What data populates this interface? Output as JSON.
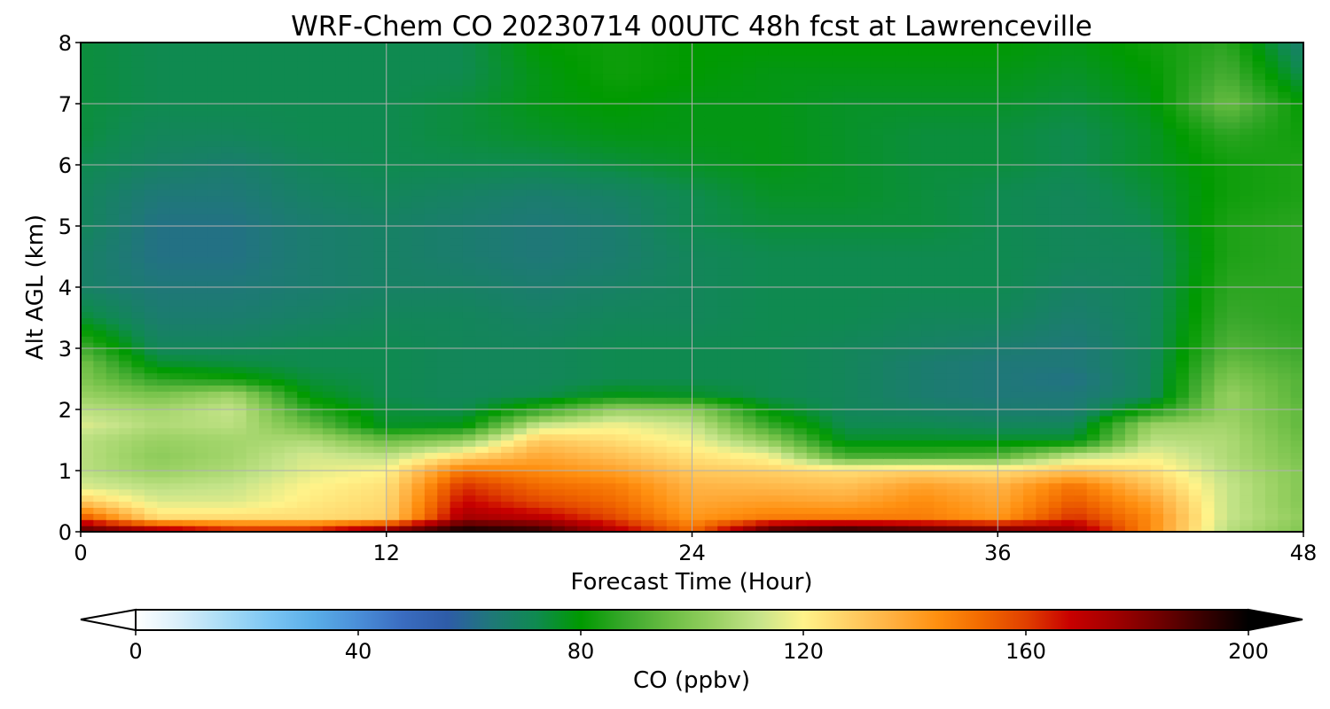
{
  "chart_data": {
    "type": "heatmap",
    "title": "WRF-Chem CO  20230714 00UTC 48h fcst at Lawrenceville",
    "xlabel": "Forecast Time (Hour)",
    "ylabel": "Alt AGL (km)",
    "xlim": [
      0,
      48
    ],
    "ylim": [
      0,
      8
    ],
    "xticks": [
      0,
      12,
      24,
      36,
      48
    ],
    "yticks": [
      0,
      1,
      2,
      3,
      4,
      5,
      6,
      7,
      8
    ],
    "grid": true,
    "colorbar": {
      "label": "CO  (ppbv)",
      "min": 0,
      "max": 200,
      "ticks": [
        0,
        40,
        80,
        120,
        160,
        200
      ],
      "extend": "both",
      "colors": [
        "#ffffff",
        "#d8eefa",
        "#a8dcf6",
        "#7cc6f4",
        "#5aaee8",
        "#4a8ed8",
        "#3a6cc0",
        "#2e5ca8",
        "#1f7878",
        "#0f8a50",
        "#009a00",
        "#3aa82c",
        "#6cbe44",
        "#98d062",
        "#c6e48a",
        "#fff38a",
        "#ffd066",
        "#ffb040",
        "#ff9010",
        "#f26a00",
        "#e04000",
        "#c80000",
        "#a00000",
        "#700000",
        "#380000",
        "#000000"
      ]
    },
    "x": [
      0,
      3,
      6,
      9,
      12,
      15,
      18,
      21,
      24,
      27,
      30,
      33,
      36,
      39,
      42,
      45,
      48
    ],
    "y": [
      0.05,
      0.25,
      0.5,
      0.75,
      1.0,
      1.25,
      1.5,
      1.75,
      2.0,
      2.25,
      2.5,
      2.75,
      3.0,
      3.5,
      4.0,
      4.5,
      5.0,
      5.5,
      6.0,
      6.5,
      7.0,
      7.5,
      8.0
    ],
    "z": [
      [
        185,
        170,
        160,
        160,
        175,
        195,
        190,
        170,
        150,
        185,
        190,
        185,
        180,
        175,
        145,
        110,
        100
      ],
      [
        155,
        125,
        125,
        125,
        128,
        175,
        170,
        158,
        142,
        148,
        148,
        148,
        142,
        162,
        145,
        112,
        102
      ],
      [
        130,
        115,
        115,
        122,
        126,
        168,
        158,
        152,
        138,
        140,
        138,
        145,
        138,
        155,
        140,
        112,
        100
      ],
      [
        115,
        110,
        112,
        120,
        124,
        162,
        152,
        148,
        135,
        134,
        132,
        140,
        135,
        150,
        132,
        112,
        100
      ],
      [
        110,
        104,
        108,
        116,
        120,
        150,
        145,
        140,
        130,
        128,
        125,
        128,
        125,
        132,
        125,
        110,
        100
      ],
      [
        110,
        102,
        106,
        114,
        110,
        125,
        138,
        132,
        124,
        118,
        90,
        90,
        92,
        110,
        118,
        108,
        98
      ],
      [
        110,
        104,
        106,
        108,
        96,
        102,
        130,
        125,
        118,
        102,
        76,
        76,
        76,
        76,
        110,
        108,
        96
      ],
      [
        115,
        108,
        110,
        96,
        76,
        78,
        112,
        118,
        112,
        88,
        72,
        72,
        70,
        70,
        104,
        106,
        94
      ],
      [
        110,
        106,
        112,
        86,
        74,
        72,
        86,
        104,
        102,
        78,
        70,
        68,
        66,
        65,
        82,
        104,
        94
      ],
      [
        104,
        98,
        105,
        78,
        72,
        70,
        72,
        78,
        76,
        72,
        70,
        66,
        64,
        64,
        70,
        104,
        92
      ],
      [
        100,
        86,
        82,
        74,
        72,
        70,
        70,
        72,
        72,
        72,
        70,
        66,
        64,
        62,
        70,
        100,
        92
      ],
      [
        98,
        76,
        74,
        72,
        72,
        70,
        70,
        72,
        72,
        72,
        70,
        66,
        64,
        64,
        70,
        96,
        90
      ],
      [
        90,
        70,
        70,
        72,
        72,
        70,
        70,
        72,
        72,
        72,
        70,
        68,
        66,
        64,
        70,
        92,
        88
      ],
      [
        75,
        66,
        66,
        68,
        70,
        70,
        68,
        70,
        70,
        72,
        72,
        70,
        70,
        66,
        70,
        88,
        86
      ],
      [
        68,
        64,
        64,
        66,
        68,
        68,
        66,
        68,
        70,
        72,
        72,
        72,
        72,
        68,
        70,
        86,
        86
      ],
      [
        68,
        62,
        62,
        66,
        68,
        66,
        64,
        66,
        70,
        72,
        72,
        72,
        72,
        70,
        70,
        84,
        86
      ],
      [
        70,
        62,
        62,
        66,
        68,
        66,
        64,
        66,
        72,
        74,
        74,
        74,
        72,
        70,
        72,
        84,
        86
      ],
      [
        70,
        64,
        64,
        68,
        70,
        68,
        66,
        68,
        72,
        76,
        76,
        74,
        72,
        70,
        74,
        82,
        84
      ],
      [
        72,
        68,
        66,
        70,
        72,
        72,
        72,
        74,
        76,
        78,
        76,
        74,
        74,
        72,
        76,
        82,
        84
      ],
      [
        74,
        70,
        70,
        72,
        72,
        74,
        76,
        78,
        78,
        78,
        76,
        74,
        74,
        72,
        76,
        86,
        82
      ],
      [
        74,
        72,
        72,
        72,
        72,
        74,
        78,
        80,
        78,
        78,
        76,
        76,
        76,
        74,
        78,
        96,
        80
      ],
      [
        74,
        72,
        72,
        72,
        72,
        72,
        78,
        82,
        80,
        78,
        78,
        78,
        78,
        76,
        80,
        90,
        72
      ],
      [
        74,
        72,
        72,
        72,
        72,
        72,
        80,
        82,
        80,
        80,
        80,
        80,
        80,
        78,
        82,
        86,
        66
      ]
    ]
  }
}
